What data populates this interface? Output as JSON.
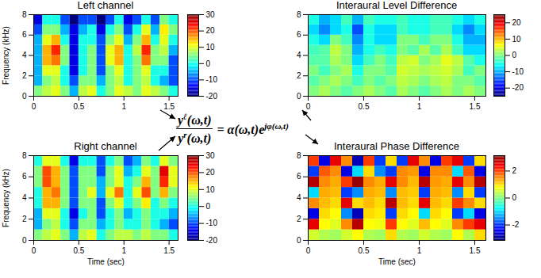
{
  "chart_data": [
    {
      "type": "heatmap",
      "title": "Left channel",
      "ylabel": "Frequency (kHz)",
      "xlabel": null,
      "xlim": [
        0,
        1.6
      ],
      "xticks": [
        0,
        0.5,
        1,
        1.5
      ],
      "ylim": [
        0,
        8
      ],
      "yticks": [
        0,
        2,
        4,
        6,
        8
      ],
      "x_edges": [
        0,
        0.1,
        0.2,
        0.3,
        0.4,
        0.5,
        0.6,
        0.7,
        0.8,
        0.9,
        1.0,
        1.1,
        1.2,
        1.3,
        1.4,
        1.5,
        1.6
      ],
      "y_edges": [
        0,
        1,
        2,
        3,
        4,
        5,
        6,
        7,
        8
      ],
      "values": [
        [
          5,
          8,
          10,
          5,
          -5,
          8,
          10,
          0,
          5,
          10,
          8,
          5,
          10,
          8,
          5,
          0
        ],
        [
          -5,
          5,
          8,
          0,
          -10,
          5,
          5,
          -5,
          5,
          8,
          0,
          5,
          8,
          0,
          -5,
          -10
        ],
        [
          -5,
          10,
          10,
          0,
          -15,
          0,
          5,
          -10,
          5,
          10,
          0,
          5,
          10,
          0,
          0,
          -10
        ],
        [
          -5,
          15,
          18,
          5,
          -15,
          0,
          5,
          -10,
          10,
          15,
          0,
          5,
          18,
          5,
          5,
          -10
        ],
        [
          -5,
          15,
          22,
          5,
          -15,
          0,
          5,
          -10,
          10,
          15,
          0,
          8,
          22,
          5,
          8,
          -5
        ],
        [
          -5,
          10,
          15,
          0,
          -15,
          0,
          0,
          -10,
          5,
          10,
          -5,
          5,
          15,
          0,
          10,
          0
        ],
        [
          -10,
          5,
          5,
          -5,
          -15,
          -5,
          0,
          -15,
          0,
          5,
          -10,
          0,
          10,
          -5,
          12,
          5
        ],
        [
          -15,
          0,
          0,
          -10,
          -20,
          -10,
          -10,
          -20,
          -10,
          0,
          -15,
          -10,
          0,
          -10,
          5,
          0
        ]
      ],
      "colorbar_lim": [
        -20,
        30
      ],
      "colorbar_ticks": [
        -20,
        -10,
        0,
        10,
        20,
        30
      ]
    },
    {
      "type": "heatmap",
      "title": "Right channel",
      "ylabel": "Frequency (kHz)",
      "xlabel": "Time (sec)",
      "xlim": [
        0,
        1.6
      ],
      "xticks": [
        0,
        0.5,
        1,
        1.5
      ],
      "ylim": [
        0,
        8
      ],
      "yticks": [
        0,
        2,
        4,
        6,
        8
      ],
      "x_edges": [
        0,
        0.1,
        0.2,
        0.3,
        0.4,
        0.5,
        0.6,
        0.7,
        0.8,
        0.9,
        1.0,
        1.1,
        1.2,
        1.3,
        1.4,
        1.5,
        1.6
      ],
      "y_edges": [
        0,
        1,
        2,
        3,
        4,
        5,
        6,
        7,
        8
      ],
      "values": [
        [
          5,
          8,
          10,
          5,
          -5,
          8,
          10,
          0,
          5,
          8,
          8,
          5,
          8,
          5,
          5,
          0
        ],
        [
          -5,
          5,
          8,
          0,
          -10,
          5,
          5,
          -5,
          0,
          5,
          0,
          0,
          5,
          0,
          -5,
          -10
        ],
        [
          -5,
          10,
          10,
          0,
          -15,
          0,
          5,
          -10,
          0,
          5,
          -5,
          0,
          5,
          0,
          0,
          -5
        ],
        [
          0,
          15,
          15,
          5,
          -10,
          5,
          5,
          -10,
          5,
          10,
          0,
          5,
          12,
          0,
          5,
          0
        ],
        [
          0,
          15,
          18,
          5,
          -10,
          5,
          10,
          -5,
          10,
          18,
          0,
          10,
          20,
          5,
          15,
          5
        ],
        [
          5,
          20,
          15,
          5,
          -10,
          5,
          5,
          -5,
          5,
          10,
          0,
          5,
          15,
          5,
          22,
          10
        ],
        [
          5,
          20,
          15,
          5,
          -10,
          5,
          5,
          -10,
          5,
          10,
          -5,
          0,
          10,
          5,
          25,
          10
        ],
        [
          0,
          10,
          10,
          0,
          -15,
          0,
          0,
          -10,
          0,
          5,
          -10,
          -5,
          5,
          0,
          10,
          5
        ]
      ],
      "colorbar_lim": [
        -20,
        30
      ],
      "colorbar_ticks": [
        -20,
        -10,
        0,
        10,
        20,
        30
      ]
    },
    {
      "type": "heatmap",
      "title": "Interaural Level Difference",
      "ylabel": null,
      "xlabel": null,
      "xlim": [
        0,
        1.6
      ],
      "xticks": [
        0,
        0.5,
        1,
        1.5
      ],
      "ylim": [
        0,
        8
      ],
      "yticks": [
        0,
        2,
        4,
        6,
        8
      ],
      "x_edges": [
        0,
        0.1,
        0.2,
        0.3,
        0.4,
        0.5,
        0.6,
        0.7,
        0.8,
        0.9,
        1.0,
        1.1,
        1.2,
        1.3,
        1.4,
        1.5,
        1.6
      ],
      "y_edges": [
        0,
        1,
        2,
        3,
        4,
        5,
        6,
        7,
        8
      ],
      "values": [
        [
          0,
          2,
          0,
          -2,
          0,
          2,
          0,
          -2,
          2,
          0,
          -2,
          0,
          2,
          0,
          2,
          0
        ],
        [
          -2,
          0,
          2,
          0,
          -3,
          0,
          -2,
          0,
          3,
          2,
          0,
          2,
          3,
          0,
          0,
          -2
        ],
        [
          0,
          -3,
          0,
          2,
          -5,
          0,
          0,
          -2,
          4,
          3,
          2,
          3,
          4,
          2,
          -3,
          0
        ],
        [
          -2,
          -2,
          2,
          0,
          -8,
          -3,
          0,
          -3,
          3,
          4,
          0,
          2,
          5,
          3,
          -2,
          -5
        ],
        [
          -3,
          -2,
          3,
          0,
          -10,
          -5,
          -3,
          -5,
          0,
          -2,
          2,
          -2,
          2,
          -3,
          -8,
          -8
        ],
        [
          -5,
          -8,
          0,
          -3,
          -12,
          -5,
          -8,
          -8,
          0,
          0,
          -3,
          0,
          0,
          -5,
          -10,
          -10
        ],
        [
          -8,
          -12,
          -8,
          -5,
          -15,
          -5,
          -8,
          -8,
          -3,
          -5,
          -5,
          -3,
          -3,
          -8,
          -12,
          -8
        ],
        [
          -5,
          -10,
          -8,
          -3,
          -10,
          -3,
          -5,
          -5,
          -3,
          -5,
          -5,
          -3,
          -3,
          -5,
          -8,
          -5
        ]
      ],
      "colorbar_lim": [
        -25,
        25
      ],
      "colorbar_ticks": [
        -20,
        -10,
        0,
        10,
        20
      ]
    },
    {
      "type": "heatmap",
      "title": "Interaural Phase Difference",
      "ylabel": null,
      "xlabel": "Time (sec)",
      "xlim": [
        0,
        1.6
      ],
      "xticks": [
        0,
        0.5,
        1,
        1.5
      ],
      "ylim": [
        0,
        8
      ],
      "yticks": [
        0,
        2,
        4,
        6,
        8
      ],
      "x_edges": [
        0,
        0.1,
        0.2,
        0.3,
        0.4,
        0.5,
        0.6,
        0.7,
        0.8,
        0.9,
        1.0,
        1.1,
        1.2,
        1.3,
        1.4,
        1.5,
        1.6
      ],
      "y_edges": [
        0,
        1,
        2,
        3,
        4,
        5,
        6,
        7,
        8
      ],
      "values": [
        [
          0.5,
          0.3,
          0.2,
          0.5,
          0.8,
          0.3,
          0.2,
          1.0,
          0.3,
          0.2,
          0.5,
          0.3,
          0.2,
          0.8,
          0.3,
          1.0
        ],
        [
          2.5,
          0.8,
          0.6,
          1.5,
          2.8,
          0.8,
          0.7,
          2.0,
          0.8,
          0.6,
          1.2,
          0.8,
          0.6,
          1.5,
          2.0,
          2.5
        ],
        [
          -2.5,
          1.0,
          0.8,
          -1.5,
          -2.8,
          1.0,
          0.9,
          -2.0,
          1.0,
          0.8,
          -1.0,
          1.0,
          0.8,
          -2.0,
          -1.0,
          -2.5
        ],
        [
          1.5,
          1.2,
          1.0,
          2.5,
          1.0,
          1.2,
          1.0,
          2.8,
          1.2,
          1.0,
          2.5,
          1.2,
          1.0,
          2.0,
          1.5,
          1.0
        ],
        [
          -1.0,
          1.3,
          1.2,
          -2.0,
          -1.5,
          1.3,
          1.2,
          -1.5,
          1.2,
          1.1,
          -2.0,
          1.3,
          1.2,
          -1.5,
          1.0,
          -2.0
        ],
        [
          2.8,
          1.5,
          1.3,
          2.0,
          3.0,
          1.5,
          1.3,
          2.5,
          1.5,
          1.2,
          2.8,
          1.4,
          1.3,
          2.5,
          1.5,
          2.8
        ],
        [
          -2.0,
          1.8,
          1.5,
          -2.5,
          -1.0,
          1.0,
          -1.5,
          -2.0,
          1.5,
          1.4,
          -2.5,
          1.5,
          1.5,
          -1.0,
          1.8,
          -2.5
        ],
        [
          2.0,
          -2.5,
          2.5,
          1.5,
          -2.8,
          2.0,
          -2.0,
          1.0,
          -2.0,
          2.5,
          1.5,
          -2.5,
          2.0,
          2.5,
          -2.0,
          1.0
        ]
      ],
      "colorbar_lim": [
        -3.14,
        3.14
      ],
      "colorbar_ticks": [
        -2,
        0,
        2
      ]
    }
  ],
  "equation": {
    "numerator_base": "y",
    "numerator_sup": "ℓ",
    "numerator_args": "(ω,t)",
    "denominator_base": "y",
    "denominator_sup": "r",
    "denominator_args": "(ω,t)",
    "rhs": "= α(ω,t)e",
    "rhs_sup": "jφ(ω,t)"
  }
}
